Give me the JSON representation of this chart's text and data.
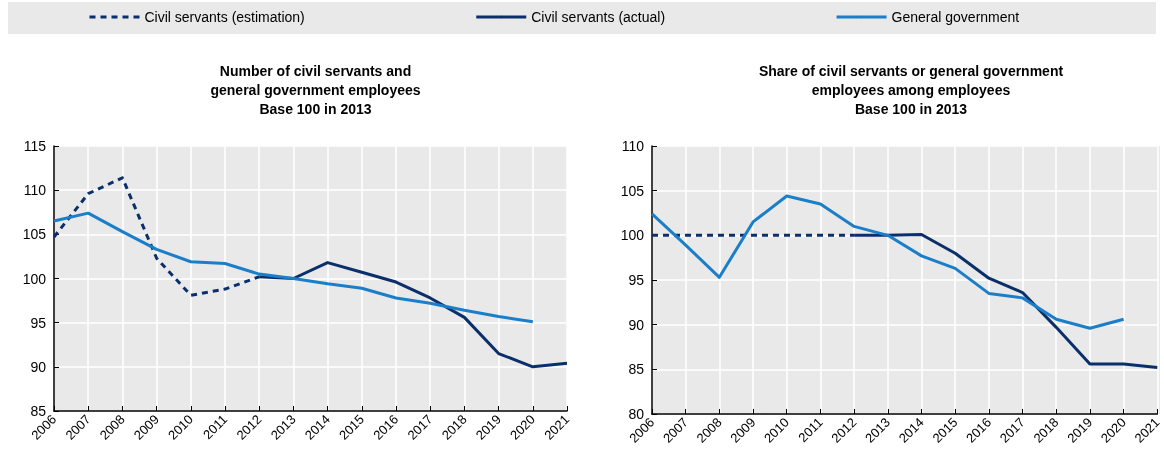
{
  "chart_data": [
    {
      "type": "line",
      "title": "Number of civil servants and\ngeneral government employees\nBase 100 in 2013",
      "categories": [
        "2006",
        "2007",
        "2008",
        "2009",
        "2010",
        "2011",
        "2012",
        "2013",
        "2014",
        "2015",
        "2016",
        "2017",
        "2018",
        "2019",
        "2020",
        "2021"
      ],
      "series": [
        {
          "name": "Civil servants (estimation)",
          "color": "#0b2f6b",
          "line_style": "dashed",
          "values": [
            104.7,
            109.6,
            111.4,
            102.3,
            98.1,
            98.8,
            100.2,
            null,
            null,
            null,
            null,
            null,
            null,
            null,
            null,
            null
          ]
        },
        {
          "name": "Civil servants (actual)",
          "color": "#0b2f6b",
          "line_style": "solid",
          "values": [
            null,
            null,
            null,
            null,
            null,
            null,
            100.2,
            100,
            101.8,
            100.7,
            99.6,
            97.8,
            95.6,
            91.5,
            90.0,
            90.4
          ]
        },
        {
          "name": "General government",
          "color": "#1a7fc8",
          "line_style": "solid",
          "values": [
            106.5,
            107.4,
            105.3,
            103.3,
            101.9,
            101.7,
            100.5,
            100,
            99.4,
            98.9,
            97.8,
            97.2,
            96.4,
            95.7,
            95.1,
            null
          ]
        }
      ],
      "ylim": [
        85,
        115
      ],
      "yticks": [
        85,
        90,
        95,
        100,
        105,
        110,
        115
      ],
      "grid": true,
      "legend": "top",
      "marker": "none"
    },
    {
      "type": "line",
      "title": "Share of civil servants or general government\nemployees among employees\nBase 100 in 2013",
      "categories": [
        "2006",
        "2007",
        "2008",
        "2009",
        "2010",
        "2011",
        "2012",
        "2013",
        "2014",
        "2015",
        "2016",
        "2017",
        "2018",
        "2019",
        "2020",
        "2021"
      ],
      "series": [
        {
          "color": "#0b2f6b",
          "line_style": "dashed",
          "values": [
            100,
            100,
            100,
            100,
            100,
            100,
            100,
            null,
            null,
            null,
            null,
            null,
            null,
            null,
            null,
            null
          ]
        },
        {
          "color": "#0b2f6b",
          "line_style": "solid",
          "values": [
            null,
            null,
            null,
            null,
            null,
            null,
            100,
            100,
            100.1,
            98.0,
            95.2,
            93.6,
            89.7,
            85.6,
            85.6,
            85.2
          ]
        },
        {
          "color": "#1a7fc8",
          "line_style": "solid",
          "values": [
            102.4,
            98.9,
            95.3,
            101.5,
            104.4,
            103.5,
            101.0,
            100,
            97.7,
            96.3,
            93.5,
            93.0,
            90.6,
            89.6,
            90.6,
            null
          ]
        }
      ],
      "ylim": [
        80,
        110
      ],
      "yticks": [
        80,
        85,
        90,
        95,
        100,
        105,
        110
      ],
      "grid": true,
      "marker": "none"
    }
  ]
}
